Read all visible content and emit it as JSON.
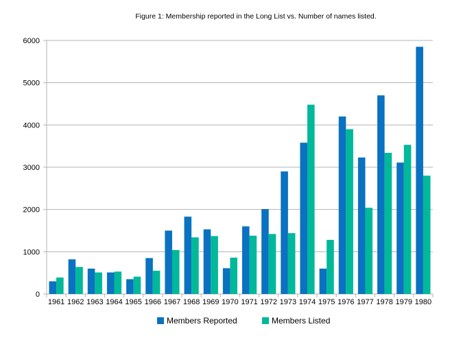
{
  "chart_data": {
    "type": "bar",
    "title": "Figure 1: Membership reported in the Long List vs. Number of names listed.",
    "xlabel": "",
    "ylabel": "",
    "ylim": [
      0,
      6000
    ],
    "yticks": [
      0,
      1000,
      2000,
      3000,
      4000,
      5000,
      6000
    ],
    "grid": true,
    "legend_position": "bottom",
    "categories": [
      "1961",
      "1962",
      "1963",
      "1964",
      "1965",
      "1966",
      "1967",
      "1968",
      "1969",
      "1970",
      "1971",
      "1972",
      "1973",
      "1974",
      "1975",
      "1976",
      "1977",
      "1978",
      "1979",
      "1980"
    ],
    "series": [
      {
        "name": "Members Reported",
        "color": "#0a72c0",
        "values": [
          300,
          820,
          600,
          510,
          350,
          850,
          1500,
          1830,
          1530,
          610,
          1600,
          2010,
          2900,
          3580,
          600,
          4200,
          3230,
          4700,
          3110,
          5850
        ]
      },
      {
        "name": "Members Listed",
        "color": "#00b89a",
        "values": [
          390,
          640,
          510,
          530,
          410,
          550,
          1040,
          1340,
          1370,
          860,
          1380,
          1420,
          1440,
          4480,
          1280,
          3900,
          2040,
          3340,
          3530,
          2800
        ]
      }
    ]
  }
}
